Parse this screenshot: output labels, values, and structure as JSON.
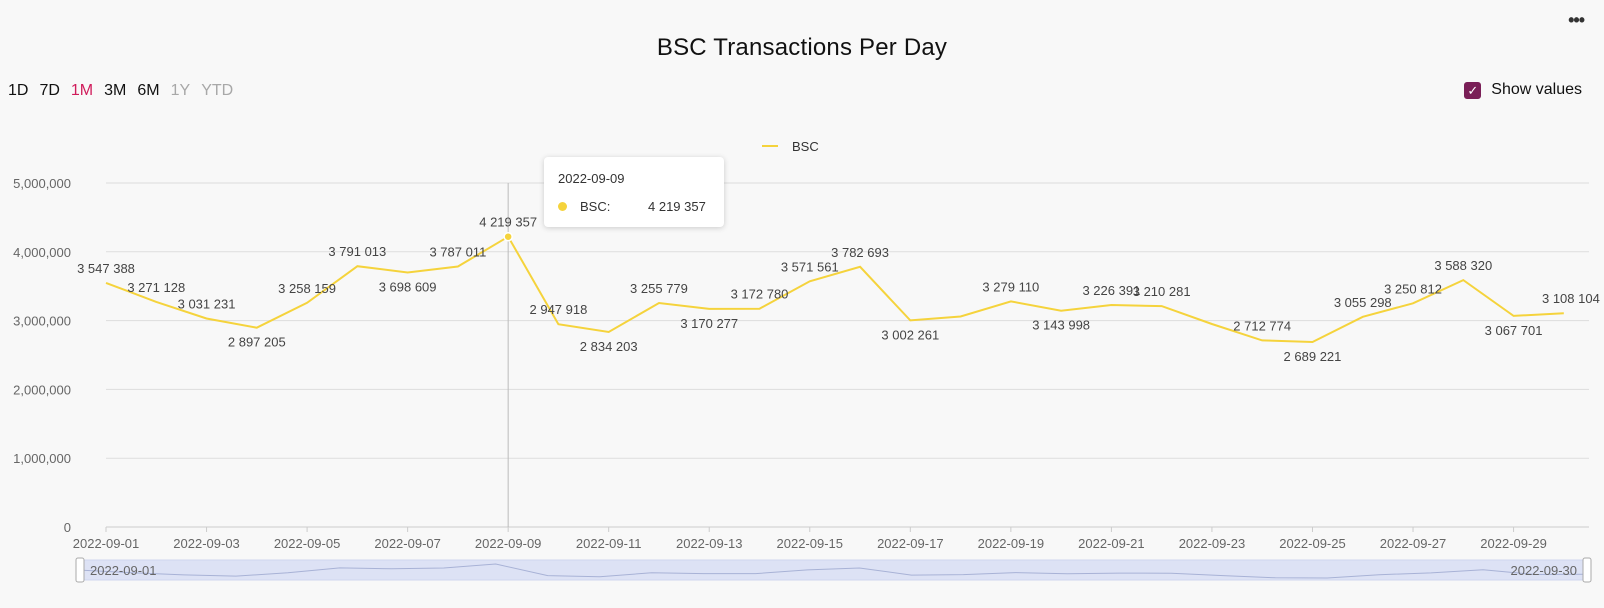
{
  "header": {
    "title": "BSC Transactions Per Day",
    "more_label": "•••"
  },
  "range_buttons": [
    {
      "label": "1D",
      "state": "normal"
    },
    {
      "label": "7D",
      "state": "normal"
    },
    {
      "label": "1M",
      "state": "active"
    },
    {
      "label": "3M",
      "state": "normal"
    },
    {
      "label": "6M",
      "state": "normal"
    },
    {
      "label": "1Y",
      "state": "disabled"
    },
    {
      "label": "YTD",
      "state": "disabled"
    }
  ],
  "show_values": {
    "label": "Show values",
    "checked": true
  },
  "tooltip": {
    "date": "2022-09-09",
    "series_name": "BSC:",
    "value": "4 219 357"
  },
  "colors": {
    "series": "#f5d33c",
    "grid": "#dddddd",
    "active_range": "#d01c5b",
    "checkbox": "#7a1f57",
    "zoom_fill": "#dde2f5"
  },
  "chart_data": {
    "type": "line",
    "legend": [
      "BSC"
    ],
    "legend_position": "top-center",
    "grid": true,
    "ylim": [
      0,
      5000000
    ],
    "y_ticks": [
      "0",
      "1,000,000",
      "2,000,000",
      "3,000,000",
      "4,000,000",
      "5,000,000"
    ],
    "x_tick_labels": [
      "2022-09-01",
      "2022-09-03",
      "2022-09-05",
      "2022-09-07",
      "2022-09-09",
      "2022-09-11",
      "2022-09-13",
      "2022-09-15",
      "2022-09-17",
      "2022-09-19",
      "2022-09-21",
      "2022-09-23",
      "2022-09-25",
      "2022-09-27",
      "2022-09-29"
    ],
    "zoom_range": [
      "2022-09-01",
      "2022-09-30"
    ],
    "series": [
      {
        "name": "BSC",
        "x": [
          "2022-09-01",
          "2022-09-02",
          "2022-09-03",
          "2022-09-04",
          "2022-09-05",
          "2022-09-06",
          "2022-09-07",
          "2022-09-08",
          "2022-09-09",
          "2022-09-10",
          "2022-09-11",
          "2022-09-12",
          "2022-09-13",
          "2022-09-14",
          "2022-09-15",
          "2022-09-16",
          "2022-09-17",
          "2022-09-18",
          "2022-09-19",
          "2022-09-20",
          "2022-09-21",
          "2022-09-22",
          "2022-09-23",
          "2022-09-24",
          "2022-09-25",
          "2022-09-26",
          "2022-09-27",
          "2022-09-28",
          "2022-09-29",
          "2022-09-30"
        ],
        "values": [
          3547388,
          3271128,
          3031231,
          2897205,
          3258159,
          3791013,
          3698609,
          3787011,
          4219357,
          2947918,
          2834203,
          3255779,
          3170277,
          3172780,
          3571561,
          3782693,
          3002261,
          3060000,
          3279110,
          3143998,
          3226391,
          3210281,
          2950000,
          2712774,
          2689221,
          3055298,
          3250812,
          3588320,
          3067701,
          3108104
        ],
        "labels": [
          "3 547 388",
          "3 271 128",
          "3 031 231",
          "2 897 205",
          "3 258 159",
          "3 791 013",
          "3 698 609",
          "3 787 011",
          "4 219 357",
          "2 947 918",
          "2 834 203",
          "3 255 779",
          "3 170 277",
          "3 172 780",
          "3 571 561",
          "3 782 693",
          "3 002 261",
          "",
          "3 279 110",
          "3 143 998",
          "3 226 391",
          "3 210 281",
          "",
          "2 712 774",
          "2 689 221",
          "3 055 298",
          "3 250 812",
          "3 588 320",
          "3 067 701",
          "3 108 104"
        ]
      }
    ]
  }
}
